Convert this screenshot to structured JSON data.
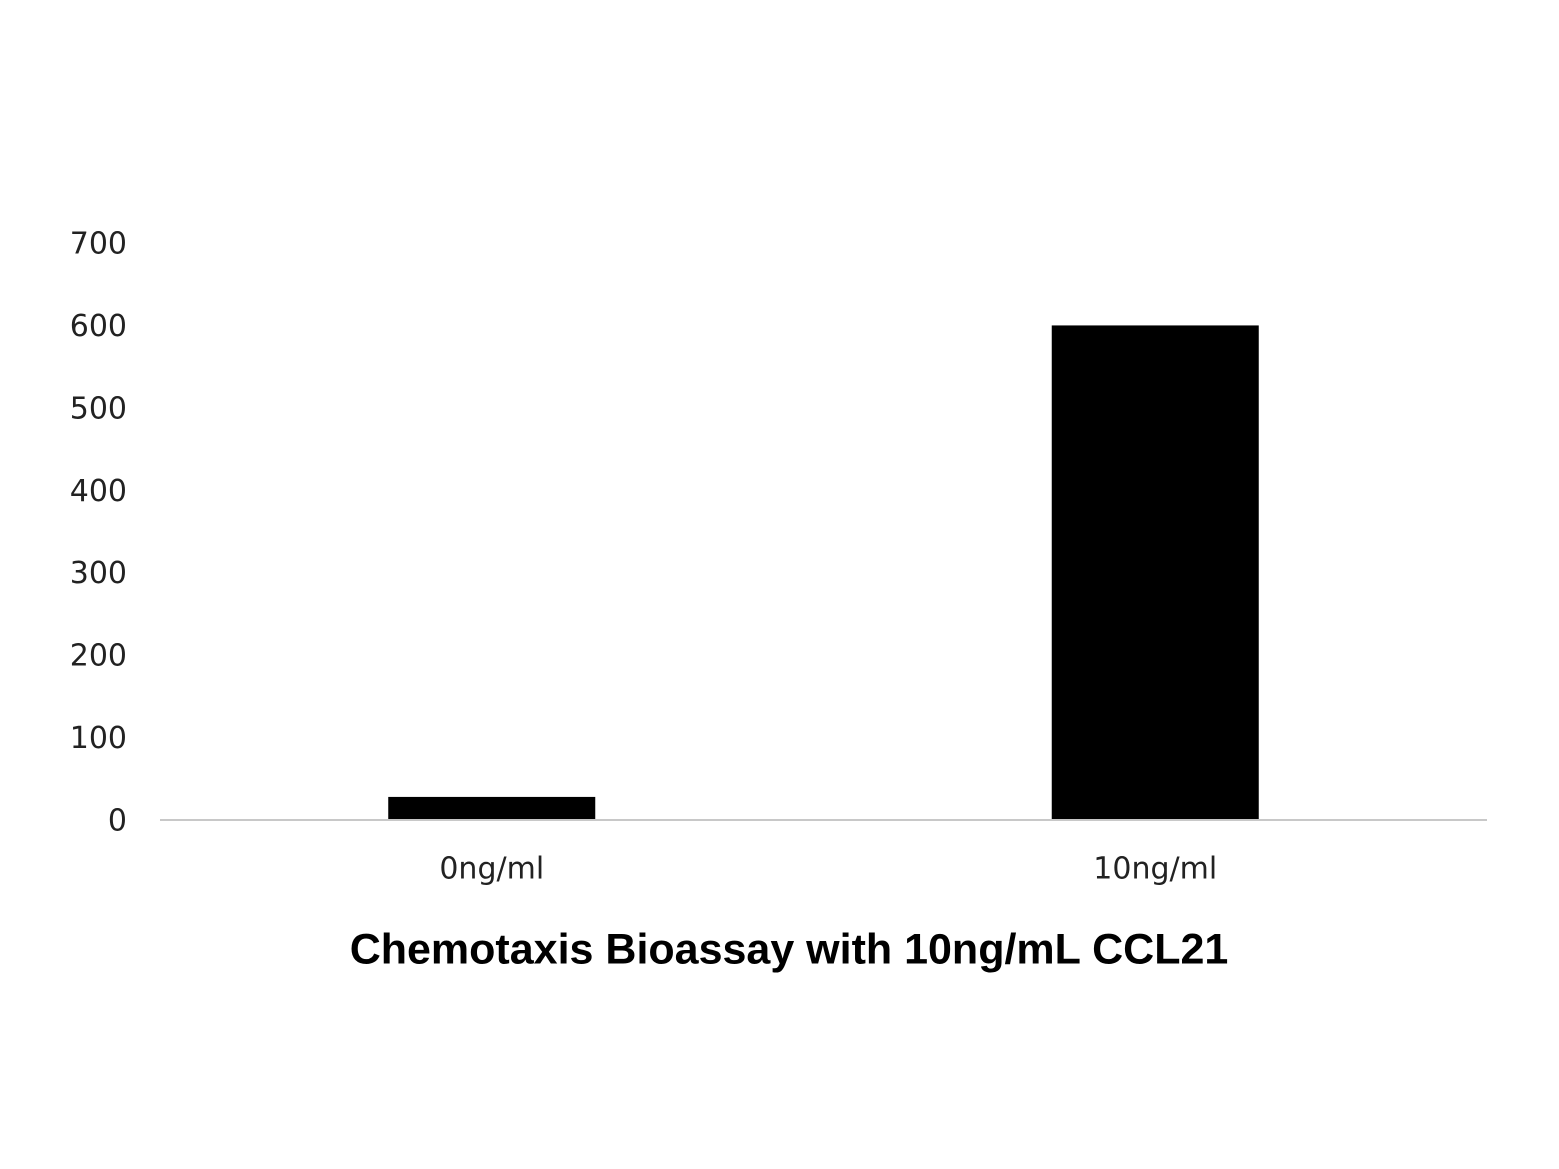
{
  "chart_data": {
    "type": "bar",
    "title": "Chemotaxis Bioassay with 10ng/mL CCL21",
    "categories": [
      "0ng/ml",
      "10ng/ml"
    ],
    "values": [
      28,
      600
    ],
    "color": "#000000",
    "ylim": [
      0,
      700
    ],
    "yticks": [
      0,
      100,
      200,
      300,
      400,
      500,
      600,
      700
    ],
    "grid": false
  }
}
